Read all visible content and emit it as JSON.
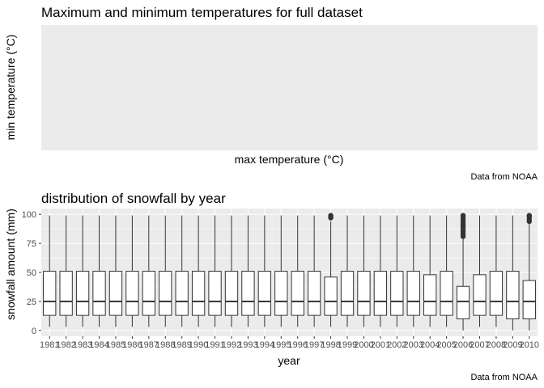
{
  "charts": [
    {
      "type": "scatter",
      "title": "Maximum and minimum temperatures for full dataset",
      "xlabel": "max temperature (°C)",
      "ylabel": "min temperature (°C)",
      "caption": "Data from NOAA",
      "grid": true,
      "points": []
    },
    {
      "type": "box",
      "title": "distribution of snowfall by year",
      "xlabel": "year",
      "ylabel": "snowfall amount (mm)",
      "caption": "Data from NOAA",
      "ylim": [
        0,
        100
      ],
      "yticks": [
        0,
        25,
        50,
        75,
        100
      ],
      "grid": true,
      "categories": [
        "1981",
        "1982",
        "1983",
        "1984",
        "1985",
        "1986",
        "1987",
        "1988",
        "1989",
        "1990",
        "1991",
        "1992",
        "1993",
        "1994",
        "1995",
        "1996",
        "1997",
        "1998",
        "1999",
        "2000",
        "2001",
        "2002",
        "2003",
        "2004",
        "2005",
        "2006",
        "2007",
        "2008",
        "2009",
        "2010"
      ],
      "boxes": [
        {
          "min": 3,
          "q1": 13,
          "median": 25,
          "q3": 51,
          "max": 99,
          "outliers": []
        },
        {
          "min": 3,
          "q1": 13,
          "median": 25,
          "q3": 51,
          "max": 99,
          "outliers": []
        },
        {
          "min": 3,
          "q1": 13,
          "median": 25,
          "q3": 51,
          "max": 99,
          "outliers": []
        },
        {
          "min": 3,
          "q1": 13,
          "median": 25,
          "q3": 51,
          "max": 99,
          "outliers": []
        },
        {
          "min": 3,
          "q1": 13,
          "median": 25,
          "q3": 51,
          "max": 99,
          "outliers": []
        },
        {
          "min": 3,
          "q1": 13,
          "median": 25,
          "q3": 51,
          "max": 99,
          "outliers": []
        },
        {
          "min": 3,
          "q1": 13,
          "median": 25,
          "q3": 51,
          "max": 99,
          "outliers": []
        },
        {
          "min": 3,
          "q1": 13,
          "median": 25,
          "q3": 51,
          "max": 99,
          "outliers": []
        },
        {
          "min": 3,
          "q1": 13,
          "median": 25,
          "q3": 51,
          "max": 99,
          "outliers": []
        },
        {
          "min": 3,
          "q1": 13,
          "median": 25,
          "q3": 51,
          "max": 99,
          "outliers": []
        },
        {
          "min": 3,
          "q1": 13,
          "median": 25,
          "q3": 51,
          "max": 99,
          "outliers": []
        },
        {
          "min": 3,
          "q1": 13,
          "median": 25,
          "q3": 51,
          "max": 99,
          "outliers": []
        },
        {
          "min": 3,
          "q1": 13,
          "median": 25,
          "q3": 51,
          "max": 99,
          "outliers": []
        },
        {
          "min": 3,
          "q1": 13,
          "median": 25,
          "q3": 51,
          "max": 99,
          "outliers": []
        },
        {
          "min": 3,
          "q1": 13,
          "median": 25,
          "q3": 51,
          "max": 99,
          "outliers": []
        },
        {
          "min": 3,
          "q1": 13,
          "median": 25,
          "q3": 51,
          "max": 99,
          "outliers": []
        },
        {
          "min": 3,
          "q1": 13,
          "median": 25,
          "q3": 51,
          "max": 99,
          "outliers": []
        },
        {
          "min": 3,
          "q1": 13,
          "median": 25,
          "q3": 46,
          "max": 94,
          "outliers": [
            97,
            98,
            99
          ]
        },
        {
          "min": 3,
          "q1": 13,
          "median": 25,
          "q3": 51,
          "max": 99,
          "outliers": []
        },
        {
          "min": 3,
          "q1": 13,
          "median": 25,
          "q3": 51,
          "max": 99,
          "outliers": []
        },
        {
          "min": 3,
          "q1": 13,
          "median": 25,
          "q3": 51,
          "max": 99,
          "outliers": []
        },
        {
          "min": 3,
          "q1": 13,
          "median": 25,
          "q3": 51,
          "max": 99,
          "outliers": []
        },
        {
          "min": 3,
          "q1": 13,
          "median": 25,
          "q3": 51,
          "max": 99,
          "outliers": []
        },
        {
          "min": 3,
          "q1": 13,
          "median": 25,
          "q3": 48,
          "max": 99,
          "outliers": []
        },
        {
          "min": 3,
          "q1": 13,
          "median": 25,
          "q3": 51,
          "max": 99,
          "outliers": []
        },
        {
          "min": 0,
          "q1": 10,
          "median": 25,
          "q3": 38,
          "max": 79,
          "outliers": [
            81,
            83,
            85,
            87,
            89,
            91,
            93,
            95,
            97,
            99
          ]
        },
        {
          "min": 3,
          "q1": 13,
          "median": 25,
          "q3": 48,
          "max": 99,
          "outliers": []
        },
        {
          "min": 3,
          "q1": 13,
          "median": 25,
          "q3": 51,
          "max": 99,
          "outliers": []
        },
        {
          "min": 0,
          "q1": 10,
          "median": 25,
          "q3": 51,
          "max": 99,
          "outliers": []
        },
        {
          "min": 0,
          "q1": 10,
          "median": 25,
          "q3": 43,
          "max": 92,
          "outliers": [
            94,
            96,
            98,
            99
          ]
        }
      ]
    }
  ],
  "colors": {
    "panel_bg": "#ebebeb",
    "grid_major": "#ffffff",
    "box_fill": "#ffffff",
    "box_stroke": "#333333",
    "outlier": "#333333"
  }
}
